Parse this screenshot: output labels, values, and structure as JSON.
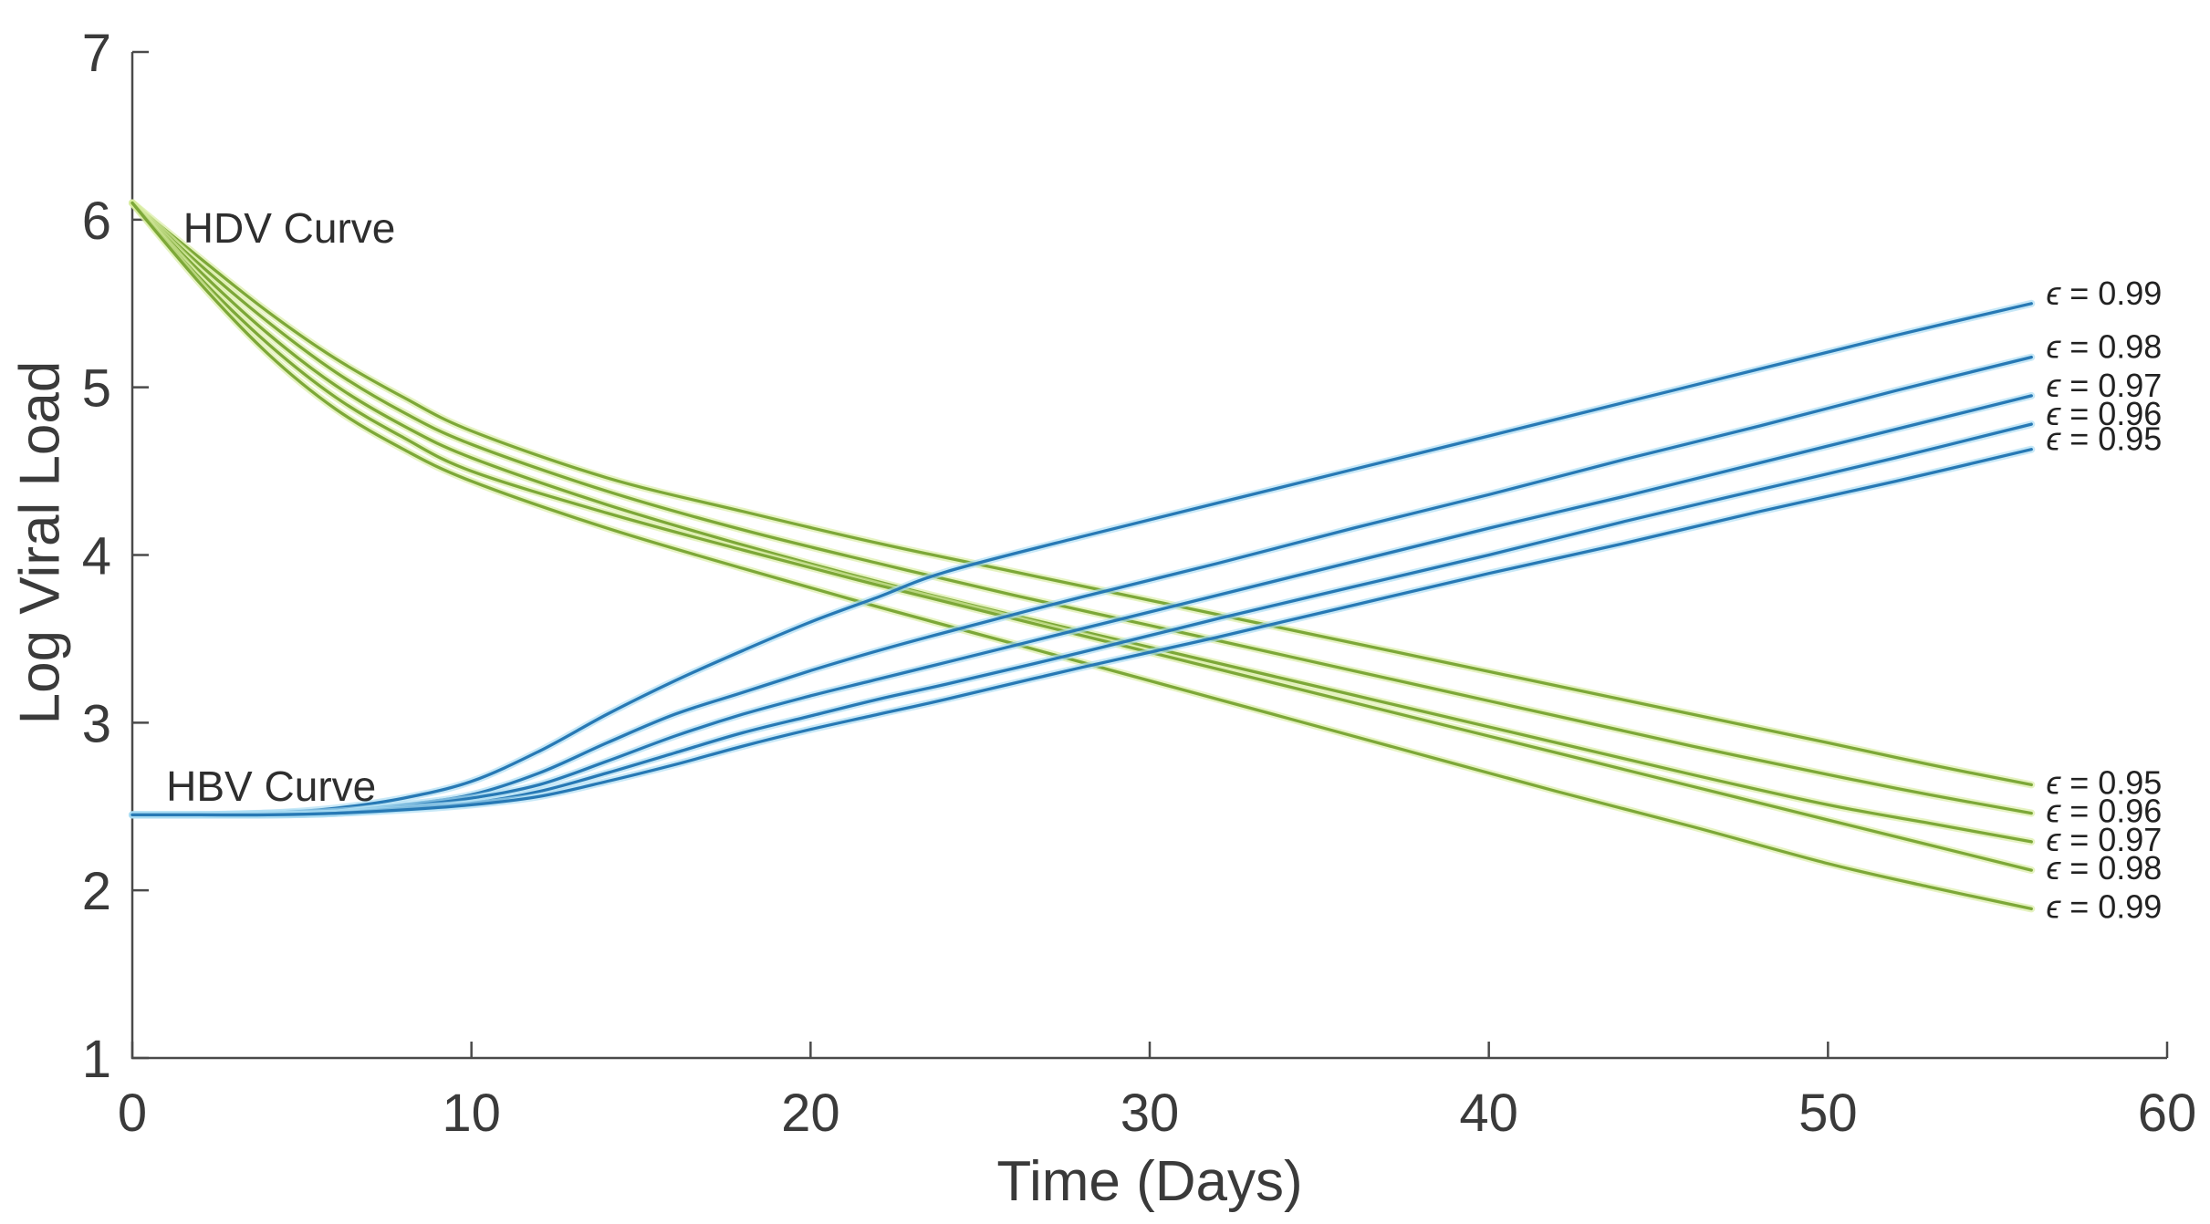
{
  "chart_data": {
    "type": "line",
    "title": "",
    "xlabel": "Time (Days)",
    "ylabel": "Log Viral Load",
    "xlim": [
      0,
      60
    ],
    "ylim": [
      1,
      7
    ],
    "x_ticks": [
      0,
      10,
      20,
      30,
      40,
      50,
      60
    ],
    "y_ticks": [
      1,
      2,
      3,
      4,
      5,
      6,
      7
    ],
    "grid": false,
    "legend": "inline-end-of-line-labels",
    "axis_color": "#4a4a4a",
    "tick_label_color": "#3a3a3a",
    "groups": [
      {
        "name": "HDV",
        "annotation": {
          "text": "HDV Curve",
          "x": 1.5,
          "y": 5.95
        },
        "color": "#7dA838",
        "halo_color": "#d9eda2",
        "label_dy": -3,
        "x": [
          0,
          2,
          4,
          6,
          8,
          10,
          14,
          18,
          22,
          26,
          30,
          34,
          38,
          42,
          46,
          50,
          53,
          56
        ],
        "series": [
          {
            "label": "ϵ = 0.95",
            "epsilon": 0.95,
            "values": [
              6.1,
              5.77,
              5.45,
              5.17,
              4.94,
              4.74,
              4.46,
              4.26,
              4.07,
              3.9,
              3.73,
              3.56,
              3.39,
              3.22,
              3.05,
              2.88,
              2.75,
              2.63
            ]
          },
          {
            "label": "ϵ = 0.96",
            "epsilon": 0.96,
            "values": [
              6.1,
              5.73,
              5.39,
              5.09,
              4.85,
              4.66,
              4.38,
              4.15,
              3.95,
              3.76,
              3.58,
              3.4,
              3.22,
              3.04,
              2.86,
              2.69,
              2.57,
              2.46
            ]
          },
          {
            "label": "ϵ = 0.97",
            "epsilon": 0.97,
            "values": [
              6.1,
              5.69,
              5.32,
              5.01,
              4.77,
              4.58,
              4.3,
              4.06,
              3.84,
              3.64,
              3.45,
              3.26,
              3.07,
              2.88,
              2.69,
              2.51,
              2.4,
              2.29
            ]
          },
          {
            "label": "ϵ = 0.98",
            "epsilon": 0.98,
            "values": [
              6.1,
              5.65,
              5.26,
              4.94,
              4.7,
              4.5,
              4.25,
              4.03,
              3.82,
              3.62,
              3.42,
              3.22,
              3.02,
              2.82,
              2.62,
              2.42,
              2.27,
              2.12
            ]
          },
          {
            "label": "ϵ = 0.99",
            "epsilon": 0.99,
            "values": [
              6.1,
              5.62,
              5.2,
              4.87,
              4.63,
              4.44,
              4.16,
              3.92,
              3.69,
              3.47,
              3.25,
              3.03,
              2.81,
              2.59,
              2.38,
              2.16,
              2.02,
              1.89
            ]
          }
        ]
      },
      {
        "name": "HBV",
        "annotation": {
          "text": "HBV Curve",
          "x": 1.0,
          "y": 2.62
        },
        "color": "#2779b5",
        "halo_color": "#a9dbf2",
        "label_dy": -12,
        "x": [
          0,
          2,
          4,
          6,
          8,
          10,
          12,
          14,
          16,
          18,
          20,
          22,
          24,
          28,
          32,
          36,
          40,
          44,
          48,
          52,
          56
        ],
        "series": [
          {
            "label": "ϵ = 0.99",
            "epsilon": 0.99,
            "values": [
              2.45,
              2.45,
              2.46,
              2.49,
              2.55,
              2.65,
              2.83,
              3.05,
              3.25,
              3.43,
              3.6,
              3.75,
              3.9,
              4.11,
              4.31,
              4.51,
              4.71,
              4.91,
              5.11,
              5.31,
              5.5
            ]
          },
          {
            "label": "ϵ = 0.98",
            "epsilon": 0.98,
            "values": [
              2.45,
              2.45,
              2.46,
              2.47,
              2.51,
              2.57,
              2.7,
              2.88,
              3.05,
              3.18,
              3.31,
              3.43,
              3.54,
              3.75,
              3.95,
              4.16,
              4.36,
              4.57,
              4.77,
              4.98,
              5.18
            ]
          },
          {
            "label": "ϵ = 0.97",
            "epsilon": 0.97,
            "values": [
              2.45,
              2.45,
              2.45,
              2.46,
              2.5,
              2.55,
              2.63,
              2.77,
              2.92,
              3.05,
              3.16,
              3.26,
              3.36,
              3.56,
              3.76,
              3.96,
              4.16,
              4.35,
              4.55,
              4.75,
              4.95
            ]
          },
          {
            "label": "ϵ = 0.96",
            "epsilon": 0.96,
            "values": [
              2.45,
              2.45,
              2.45,
              2.46,
              2.49,
              2.52,
              2.59,
              2.7,
              2.82,
              2.94,
              3.04,
              3.14,
              3.23,
              3.42,
              3.62,
              3.81,
              4.0,
              4.2,
              4.39,
              4.58,
              4.78
            ]
          },
          {
            "label": "ϵ = 0.95",
            "epsilon": 0.95,
            "values": [
              2.45,
              2.45,
              2.45,
              2.46,
              2.48,
              2.51,
              2.56,
              2.65,
              2.75,
              2.86,
              2.96,
              3.05,
              3.14,
              3.33,
              3.51,
              3.7,
              3.89,
              4.07,
              4.26,
              4.44,
              4.63
            ]
          }
        ]
      }
    ]
  }
}
